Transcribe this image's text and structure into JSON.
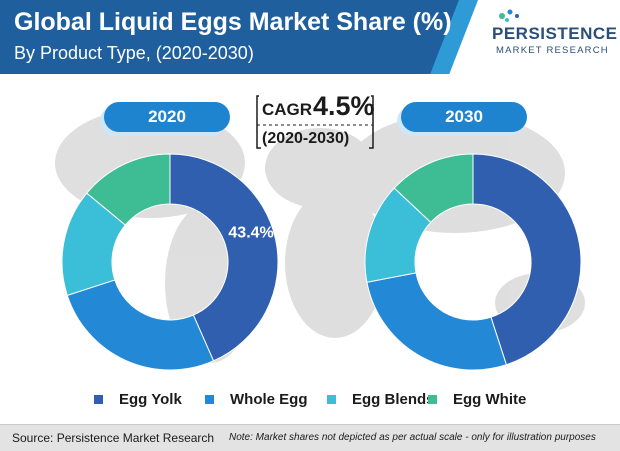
{
  "header": {
    "title": "Global Liquid Eggs Market Share (%)",
    "subtitle": "By Product Type, (2020-2030)"
  },
  "logo": {
    "line1": "PERSISTENCE",
    "line2": "MARKET RESEARCH"
  },
  "cagr": {
    "label": "CAGR",
    "value": "4.5%",
    "period": "(2020-2030)"
  },
  "footer": {
    "source": "Source: Persistence Market Research",
    "note": "Note: Market shares not depicted as per actual scale - only for illustration purposes"
  },
  "colors": {
    "header_band": "#1f5f9e",
    "pill": "#1f84d0",
    "map": "#d9d9d9"
  },
  "chart_data": [
    {
      "type": "pie",
      "variant": "donut",
      "title": "2020",
      "categories": [
        "Egg Yolk",
        "Whole Egg",
        "Egg Blends",
        "Egg White"
      ],
      "values": [
        43.4,
        26.6,
        16,
        14
      ],
      "colors": [
        "#2f5fae",
        "#2388d6",
        "#3bbfd8",
        "#3ebc94"
      ],
      "data_labels": [
        "43.4%",
        "",
        "",
        ""
      ],
      "legend": "bottom"
    },
    {
      "type": "pie",
      "variant": "donut",
      "title": "2030",
      "categories": [
        "Egg Yolk",
        "Whole Egg",
        "Egg Blends",
        "Egg White"
      ],
      "values": [
        45,
        27,
        15,
        13
      ],
      "colors": [
        "#2f5fae",
        "#2388d6",
        "#3bbfd8",
        "#3ebc94"
      ],
      "data_labels": [
        "",
        "",
        "",
        ""
      ],
      "legend": "bottom"
    }
  ],
  "legend": {
    "items": [
      {
        "label": "Egg Yolk",
        "color": "#2f5fae"
      },
      {
        "label": "Whole Egg",
        "color": "#2388d6"
      },
      {
        "label": "Egg Blends",
        "color": "#3bbfd8"
      },
      {
        "label": "Egg White",
        "color": "#3ebc94"
      }
    ]
  }
}
